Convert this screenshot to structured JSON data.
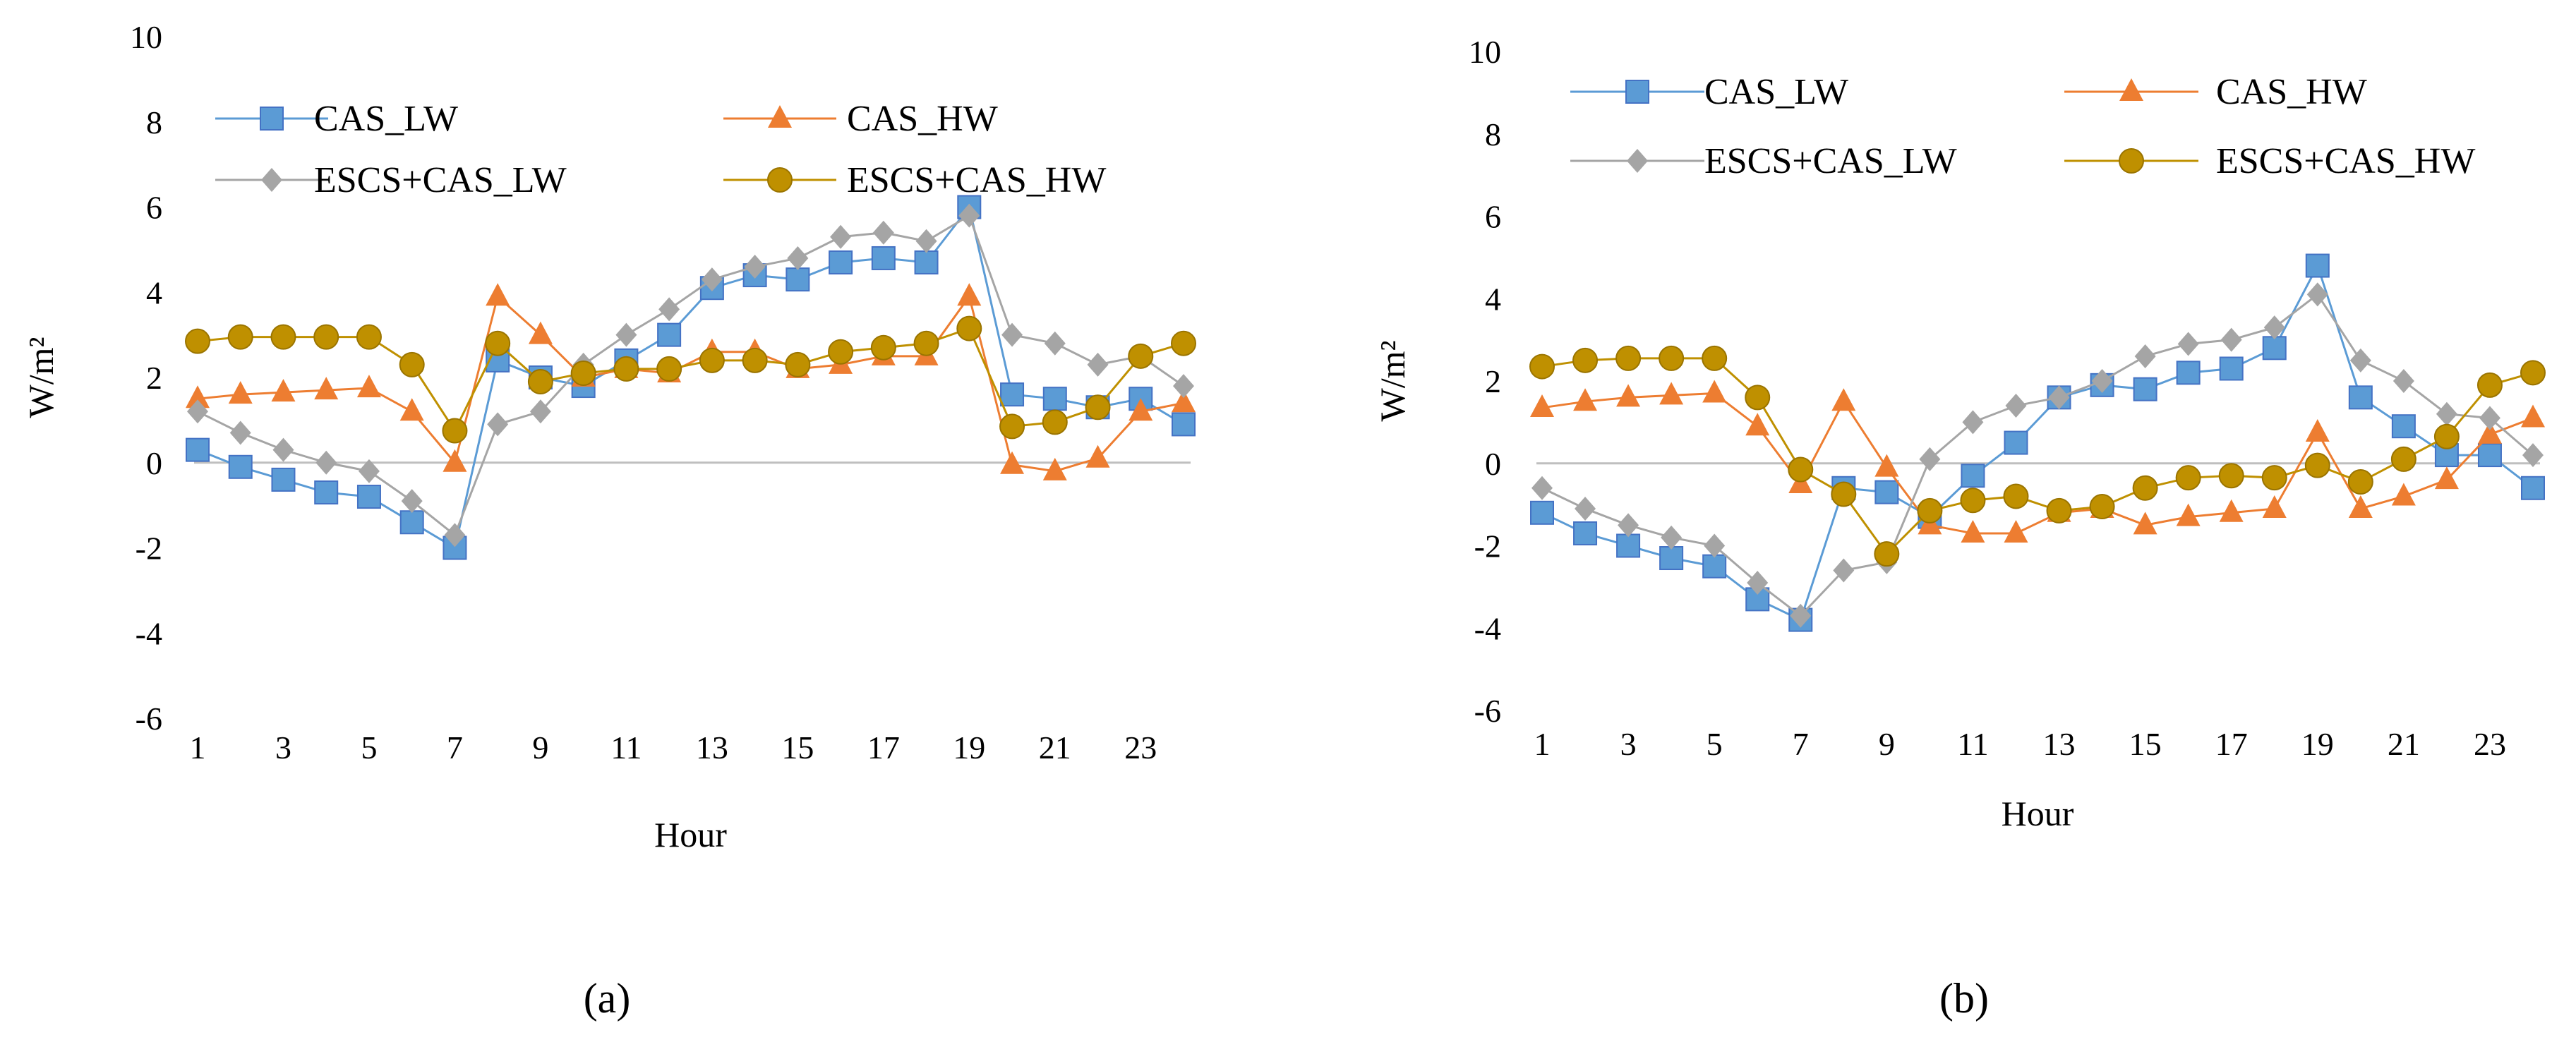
{
  "chart_data": [
    {
      "type": "line",
      "panel_label": "(a)",
      "xlabel": "Hour",
      "ylabel": "W/m²",
      "ylim": [
        -6,
        10
      ],
      "yticks": [
        -6,
        -4,
        -2,
        0,
        2,
        4,
        6,
        8,
        10
      ],
      "ytick_labels": [
        "-6",
        "-4",
        "-2",
        "0",
        "2",
        "4",
        "6",
        "8",
        "10"
      ],
      "xlim": [
        1,
        24
      ],
      "xticks": [
        1,
        3,
        5,
        7,
        9,
        11,
        13,
        15,
        17,
        19,
        21,
        23
      ],
      "xtick_labels": [
        "1",
        "3",
        "5",
        "7",
        "9",
        "11",
        "13",
        "15",
        "17",
        "19",
        "21",
        "23"
      ],
      "x": [
        1,
        2,
        3,
        4,
        5,
        6,
        7,
        8,
        9,
        10,
        11,
        12,
        13,
        14,
        15,
        16,
        17,
        18,
        19,
        20,
        21,
        22,
        23,
        24
      ],
      "grid": false,
      "legend_position": "top",
      "series": [
        {
          "name": "CAS_LW",
          "color": "#5B9BD5",
          "marker": "square",
          "values": [
            0.3,
            -0.1,
            -0.4,
            -0.7,
            -0.8,
            -1.4,
            -2.0,
            2.4,
            2.0,
            1.8,
            2.4,
            3.0,
            4.1,
            4.4,
            4.3,
            4.7,
            4.8,
            4.7,
            6.0,
            1.6,
            1.5,
            1.3,
            1.5,
            0.9
          ]
        },
        {
          "name": "CAS_HW",
          "color": "#ED7D31",
          "marker": "triangle",
          "values": [
            1.5,
            1.6,
            1.65,
            1.7,
            1.75,
            1.2,
            0.0,
            3.9,
            3.0,
            2.0,
            2.2,
            2.1,
            2.6,
            2.6,
            2.2,
            2.3,
            2.5,
            2.5,
            3.9,
            -0.05,
            -0.2,
            0.1,
            1.2,
            1.4
          ]
        },
        {
          "name": "ESCS+CAS_LW",
          "color": "#A5A5A5",
          "marker": "diamond",
          "values": [
            1.2,
            0.7,
            0.3,
            0.0,
            -0.2,
            -0.9,
            -1.7,
            0.9,
            1.2,
            2.3,
            3.0,
            3.6,
            4.3,
            4.6,
            4.8,
            5.3,
            5.4,
            5.2,
            5.8,
            3.0,
            2.8,
            2.3,
            2.5,
            1.8
          ]
        },
        {
          "name": "ESCS+CAS_HW",
          "color": "#BF9000",
          "marker": "circle",
          "values": [
            2.85,
            2.95,
            2.95,
            2.95,
            2.95,
            2.3,
            0.75,
            2.8,
            1.9,
            2.1,
            2.2,
            2.2,
            2.4,
            2.4,
            2.3,
            2.6,
            2.7,
            2.8,
            3.15,
            0.85,
            0.95,
            1.3,
            2.5,
            2.8
          ]
        }
      ]
    },
    {
      "type": "line",
      "panel_label": "(b)",
      "xlabel": "Hour",
      "ylabel": "W/m²",
      "ylim": [
        -6,
        10
      ],
      "yticks": [
        -6,
        -4,
        -2,
        0,
        2,
        4,
        6,
        8,
        10
      ],
      "ytick_labels": [
        "-6",
        "-4",
        "-2",
        "0",
        "2",
        "4",
        "6",
        "8",
        "10"
      ],
      "xlim": [
        1,
        24
      ],
      "xticks": [
        1,
        3,
        5,
        7,
        9,
        11,
        13,
        15,
        17,
        19,
        21,
        23
      ],
      "xtick_labels": [
        "1",
        "3",
        "5",
        "7",
        "9",
        "11",
        "13",
        "15",
        "17",
        "19",
        "21",
        "23"
      ],
      "x": [
        1,
        2,
        3,
        4,
        5,
        6,
        7,
        8,
        9,
        10,
        11,
        12,
        13,
        14,
        15,
        16,
        17,
        18,
        19,
        20,
        21,
        22,
        23,
        24
      ],
      "grid": false,
      "legend_position": "top",
      "series": [
        {
          "name": "CAS_LW",
          "color": "#5B9BD5",
          "marker": "square",
          "values": [
            -1.2,
            -1.7,
            -2.0,
            -2.3,
            -2.5,
            -3.3,
            -3.8,
            -0.6,
            -0.7,
            -1.3,
            -0.3,
            0.5,
            1.6,
            1.9,
            1.8,
            2.2,
            2.3,
            2.8,
            4.8,
            1.6,
            0.9,
            0.2,
            0.2,
            -0.6
          ]
        },
        {
          "name": "CAS_HW",
          "color": "#ED7D31",
          "marker": "triangle",
          "values": [
            1.35,
            1.5,
            1.6,
            1.65,
            1.7,
            0.9,
            -0.5,
            1.5,
            -0.1,
            -1.5,
            -1.7,
            -1.7,
            -1.2,
            -1.1,
            -1.5,
            -1.3,
            -1.2,
            -1.1,
            0.75,
            -1.1,
            -0.8,
            -0.4,
            0.7,
            1.1
          ]
        },
        {
          "name": "ESCS+CAS_LW",
          "color": "#A5A5A5",
          "marker": "diamond",
          "values": [
            -0.6,
            -1.1,
            -1.5,
            -1.8,
            -2.0,
            -2.9,
            -3.7,
            -2.6,
            -2.4,
            0.1,
            1.0,
            1.4,
            1.6,
            2.0,
            2.6,
            2.9,
            3.0,
            3.3,
            4.1,
            2.5,
            2.0,
            1.2,
            1.1,
            0.2
          ]
        },
        {
          "name": "ESCS+CAS_HW",
          "color": "#BF9000",
          "marker": "circle",
          "values": [
            2.35,
            2.5,
            2.55,
            2.55,
            2.55,
            1.6,
            -0.15,
            -0.75,
            -2.2,
            -1.15,
            -0.9,
            -0.8,
            -1.15,
            -1.05,
            -0.6,
            -0.35,
            -0.3,
            -0.35,
            -0.05,
            -0.45,
            0.1,
            0.65,
            1.9,
            2.2
          ]
        }
      ]
    }
  ]
}
